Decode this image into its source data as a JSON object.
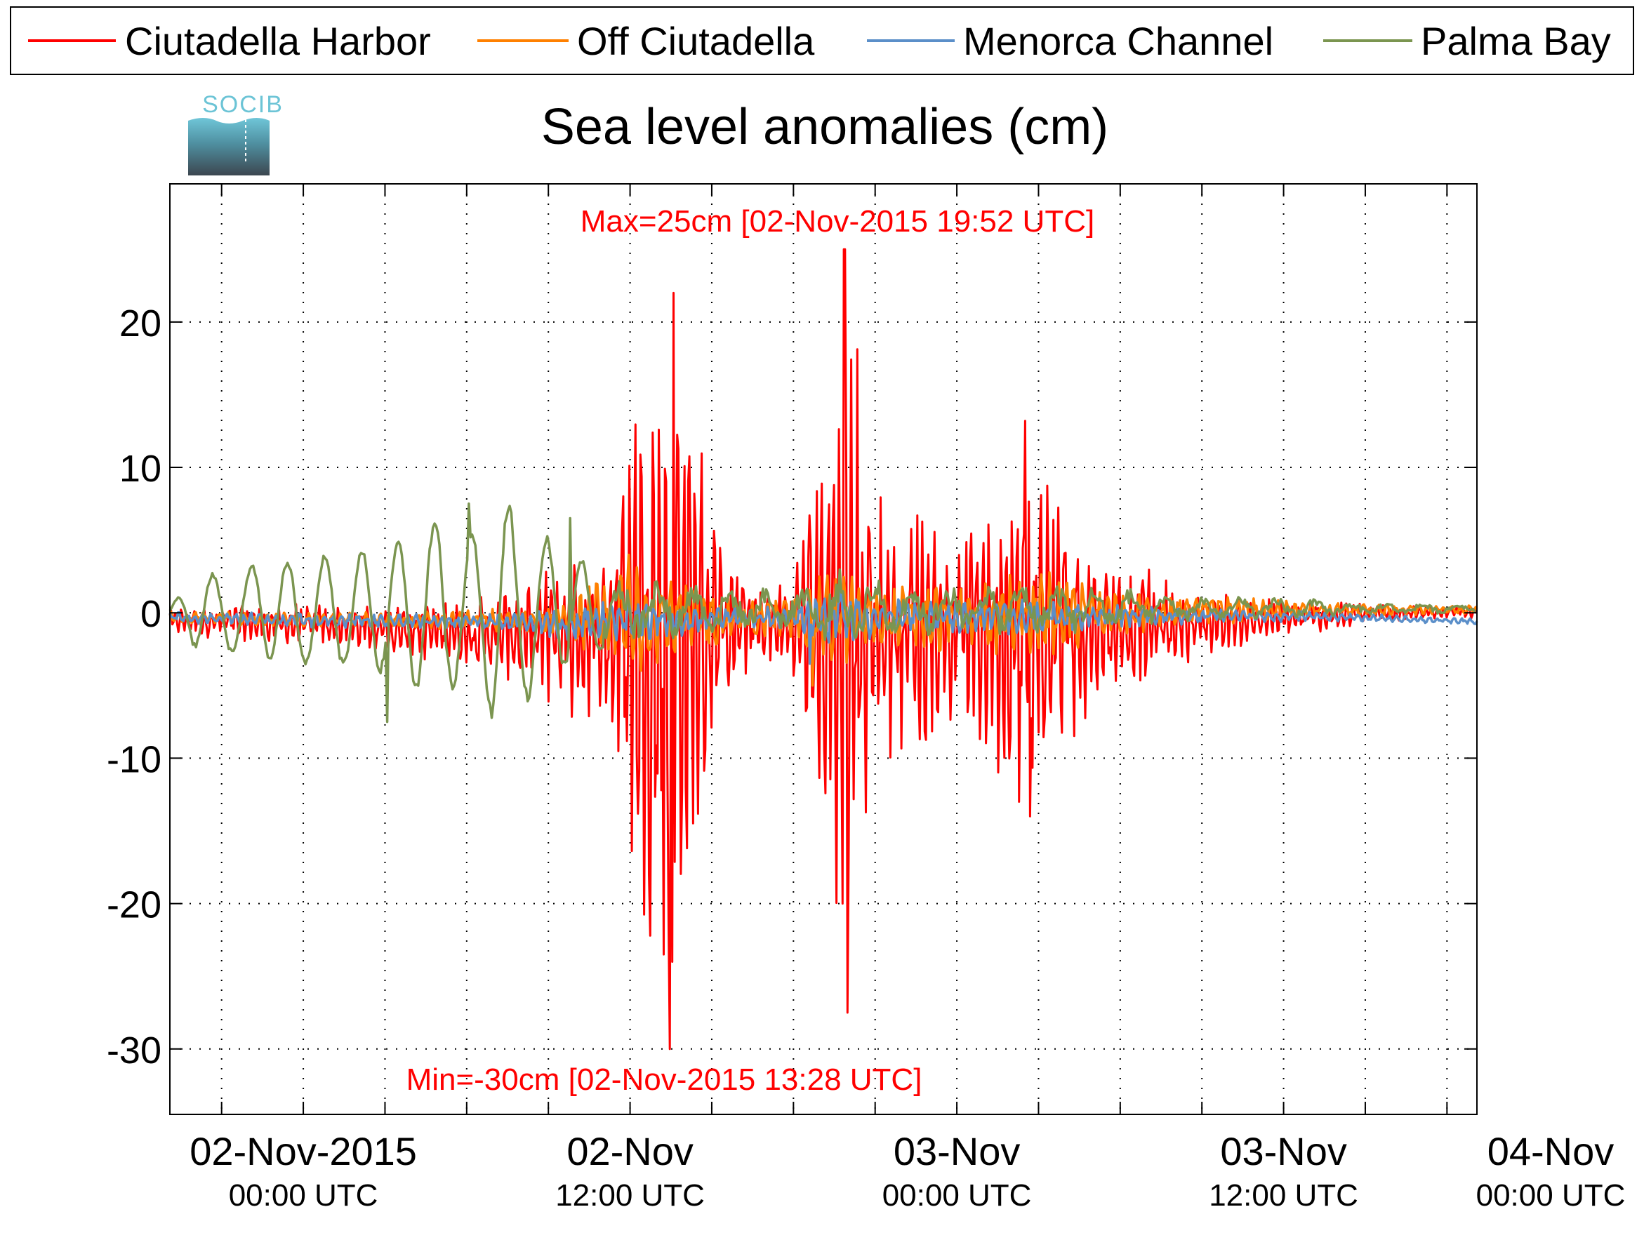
{
  "logo_text": "SOCIB",
  "chart_data": {
    "type": "line",
    "title": "Sea level anomalies (cm)",
    "xlabel": "",
    "ylabel": "",
    "x_unit": "hours since 02-Nov-2015 00:00 UTC",
    "xlim": [
      -4.9,
      43.1
    ],
    "ylim": [
      -34.5,
      29.5
    ],
    "grid": true,
    "legend_position": "top (outside plot, horizontal)",
    "x_ticks": [
      {
        "x": 0,
        "line1": "02-Nov-2015",
        "line2": "00:00 UTC"
      },
      {
        "x": 12,
        "line1": "02-Nov",
        "line2": "12:00 UTC"
      },
      {
        "x": 24,
        "line1": "03-Nov",
        "line2": "00:00 UTC"
      },
      {
        "x": 36,
        "line1": "03-Nov",
        "line2": "12:00 UTC"
      },
      {
        "x": 48,
        "line1": "04-Nov",
        "line2": "00:00 UTC"
      }
    ],
    "x_minor_ticks": [
      -3,
      3,
      6,
      9,
      15,
      18,
      21,
      27,
      30,
      33,
      39,
      42
    ],
    "y_ticks": [
      -30,
      -20,
      -10,
      0,
      10,
      20
    ],
    "annotations": [
      {
        "text": "Max=25cm [02-Nov-2015 19:52 UTC]",
        "x": 19.87,
        "y": 25,
        "color": "#ff0000"
      },
      {
        "text": "Min=-30cm [02-Nov-2015 13:28 UTC]",
        "x": 13.47,
        "y": -30,
        "color": "#ff0000"
      }
    ],
    "series": [
      {
        "name": "Ciutadella Harbor",
        "color": "#ff0000",
        "envelope": [
          [
            -4.9,
            1.0
          ],
          [
            -3,
            1.2
          ],
          [
            0,
            1.5
          ],
          [
            3,
            1.8
          ],
          [
            6,
            2.5
          ],
          [
            8,
            3.5
          ],
          [
            9,
            5.5
          ],
          [
            10,
            6.5
          ],
          [
            11,
            5
          ],
          [
            12,
            16
          ],
          [
            12.7,
            22
          ],
          [
            13.2,
            24
          ],
          [
            13.5,
            29
          ],
          [
            13.9,
            20
          ],
          [
            14.5,
            15
          ],
          [
            15,
            8
          ],
          [
            16,
            4
          ],
          [
            17,
            3
          ],
          [
            18,
            4
          ],
          [
            19,
            12
          ],
          [
            19.8,
            25
          ],
          [
            20.3,
            22
          ],
          [
            21,
            14
          ],
          [
            22,
            10
          ],
          [
            23,
            9
          ],
          [
            24,
            8
          ],
          [
            25,
            9
          ],
          [
            26,
            12
          ],
          [
            26.4,
            13
          ],
          [
            27,
            12
          ],
          [
            28,
            11
          ],
          [
            28.5,
            8
          ],
          [
            29,
            5
          ],
          [
            30,
            4
          ],
          [
            31,
            4
          ],
          [
            32,
            3
          ],
          [
            33,
            2.5
          ],
          [
            34,
            2.0
          ],
          [
            35,
            1.5
          ],
          [
            36,
            1.5
          ],
          [
            38,
            1.0
          ],
          [
            40,
            0.6
          ],
          [
            43.1,
            0.4
          ]
        ],
        "offset": [
          [
            -4.9,
            -0.5
          ],
          [
            0,
            -0.8
          ],
          [
            8,
            -1.5
          ],
          [
            12,
            -1.5
          ],
          [
            16,
            -0.8
          ],
          [
            22,
            -1
          ],
          [
            26,
            -1
          ],
          [
            30,
            -1
          ],
          [
            34,
            -0.6
          ],
          [
            40,
            0
          ],
          [
            43.1,
            0
          ]
        ],
        "spikes": [
          [
            13.47,
            -30
          ],
          [
            13.55,
            -24
          ],
          [
            13.25,
            -23.5
          ],
          [
            13.6,
            22
          ],
          [
            19.87,
            25
          ],
          [
            20.0,
            -27.5
          ],
          [
            19.8,
            -20
          ],
          [
            26.5,
            13.2
          ],
          [
            26.7,
            -14
          ],
          [
            26.3,
            -13
          ]
        ]
      },
      {
        "name": "Off Ciutadella",
        "color": "#ff8000",
        "envelope": [
          [
            -4.9,
            0.4
          ],
          [
            0,
            0.5
          ],
          [
            6,
            0.7
          ],
          [
            9,
            1.0
          ],
          [
            11,
            3
          ],
          [
            12,
            5
          ],
          [
            13,
            3
          ],
          [
            14,
            3
          ],
          [
            16,
            1.5
          ],
          [
            18,
            1.5
          ],
          [
            19,
            3
          ],
          [
            20,
            3.5
          ],
          [
            21,
            2.5
          ],
          [
            24,
            2.5
          ],
          [
            26,
            3
          ],
          [
            28,
            3
          ],
          [
            30,
            1.5
          ],
          [
            34,
            1
          ],
          [
            38,
            0.5
          ],
          [
            43.1,
            0.3
          ]
        ],
        "offset": [
          [
            -4.9,
            -0.3
          ],
          [
            0,
            -0.5
          ],
          [
            10,
            -0.5
          ],
          [
            16,
            -0.4
          ],
          [
            24,
            -0.4
          ],
          [
            34,
            0.2
          ],
          [
            40,
            0.2
          ],
          [
            43.1,
            0.2
          ]
        ],
        "spikes": [
          [
            18.7,
            -5
          ]
        ]
      },
      {
        "name": "Menorca Channel",
        "color": "#5b8fc9",
        "envelope": [
          [
            -4.9,
            0.4
          ],
          [
            0,
            0.5
          ],
          [
            8,
            0.6
          ],
          [
            10,
            1.5
          ],
          [
            12,
            1.5
          ],
          [
            14,
            1.2
          ],
          [
            16,
            0.8
          ],
          [
            18,
            0.8
          ],
          [
            19,
            2
          ],
          [
            20,
            2
          ],
          [
            22,
            1.2
          ],
          [
            26,
            1.3
          ],
          [
            30,
            0.8
          ],
          [
            34,
            0.5
          ],
          [
            38,
            0.3
          ],
          [
            43.1,
            0.2
          ]
        ],
        "offset": [
          [
            -4.9,
            -0.3
          ],
          [
            0,
            -0.5
          ],
          [
            10,
            -0.7
          ],
          [
            18,
            -0.3
          ],
          [
            24,
            -0.3
          ],
          [
            34,
            -0.2
          ],
          [
            38,
            -0.3
          ],
          [
            43.1,
            -0.6
          ]
        ],
        "spikes": [
          [
            18.6,
            -3.5
          ]
        ]
      },
      {
        "name": "Palma Bay",
        "color": "#7b9550",
        "envelope": [
          [
            -4.9,
            0.5
          ],
          [
            -4,
            2.5
          ],
          [
            -3,
            3
          ],
          [
            -1,
            3.5
          ],
          [
            1,
            4
          ],
          [
            3,
            4.5
          ],
          [
            5,
            6.5
          ],
          [
            6,
            5
          ],
          [
            7,
            8
          ],
          [
            8,
            7
          ],
          [
            9,
            5
          ],
          [
            10,
            3.5
          ],
          [
            12,
            2.5
          ],
          [
            14,
            2
          ],
          [
            16,
            1.5
          ],
          [
            18,
            1.5
          ],
          [
            19,
            2.5
          ],
          [
            20,
            2.8
          ],
          [
            22,
            2
          ],
          [
            24,
            2
          ],
          [
            26,
            2
          ],
          [
            28,
            1.8
          ],
          [
            30,
            1.5
          ],
          [
            32,
            1
          ],
          [
            34,
            0.8
          ],
          [
            36,
            0.8
          ],
          [
            38,
            0.5
          ],
          [
            43.1,
            0.3
          ]
        ],
        "offset": [
          [
            -4.9,
            0
          ],
          [
            0,
            0.2
          ],
          [
            10,
            0.3
          ],
          [
            20,
            0.3
          ],
          [
            30,
            0.3
          ],
          [
            43.1,
            0.3
          ]
        ],
        "spikes": [
          [
            3.1,
            -7.5
          ],
          [
            6.1,
            7.5
          ],
          [
            9.8,
            6.5
          ]
        ]
      }
    ]
  }
}
